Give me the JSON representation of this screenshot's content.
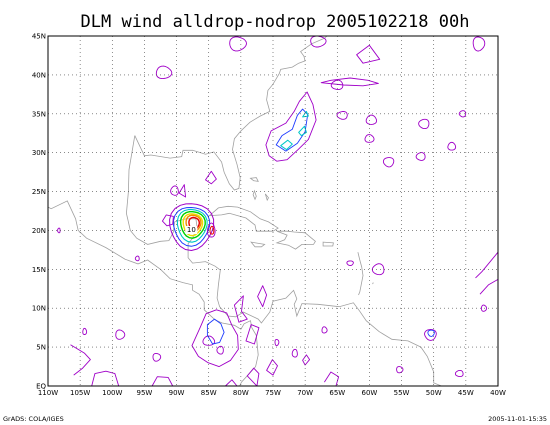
{
  "title": "DLM wind alldrop-nodrop 2005102218 00h",
  "footer_left": "GrADS: COLA/IGES",
  "footer_right": "2005-11-01-15:35",
  "map": {
    "lon_range": [
      -110,
      -40
    ],
    "lat_range": [
      0,
      45
    ],
    "x_ticks": [
      "110W",
      "105W",
      "100W",
      "95W",
      "90W",
      "85W",
      "80W",
      "75W",
      "70W",
      "65W",
      "60W",
      "55W",
      "50W",
      "45W",
      "40W"
    ],
    "y_ticks": [
      "EQ",
      "5N",
      "10N",
      "15N",
      "20N",
      "25N",
      "30N",
      "35N",
      "40N",
      "45N"
    ],
    "grid": "dotted",
    "coastline_color": "#a0a0a0",
    "contour_colors": {
      "purple": "#a000c8",
      "blue": "#1e3cff",
      "cyan": "#00c8c8",
      "green": "#00d200",
      "yellow": "#f0dc00",
      "orange": "#f08c00",
      "red": "#e60000"
    },
    "contour_labels": [
      {
        "text": "10",
        "lon": -87.7,
        "lat": 19.8
      }
    ]
  }
}
